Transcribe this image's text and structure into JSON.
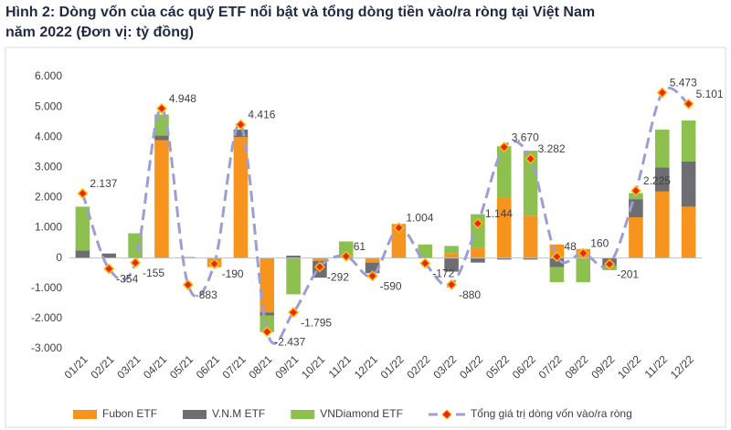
{
  "chart_data": {
    "type": "bar_line",
    "title": [
      "Hình 2: Dòng vốn của các quỹ ETF nổi bật và tổng dòng tiền vào/ra ròng tại Việt Nam",
      "năm 2022 (Đơn vị: tỷ đồng)"
    ],
    "categories": [
      "01/21",
      "02/21",
      "03/21",
      "04/21",
      "05/21",
      "06/21",
      "07/21",
      "08/21",
      "09/21",
      "10/21",
      "11/21",
      "12/21",
      "01/22",
      "02/22",
      "03/22",
      "04/22",
      "05/22",
      "06/22",
      "07/22",
      "08/22",
      "09/22",
      "10/22",
      "11/22",
      "12/22"
    ],
    "series": [
      {
        "name": "Fubon ETF",
        "type": "bar",
        "color": "#f7941d",
        "values": [
          0,
          0,
          0,
          3900,
          0,
          -300,
          4000,
          -1800,
          0,
          -100,
          0,
          -150,
          1130,
          0,
          150,
          350,
          2000,
          1400,
          450,
          300,
          0,
          1350,
          2200,
          1700
        ]
      },
      {
        "name": "V.N.M ETF",
        "type": "bar",
        "color": "#6d6e71",
        "values": [
          250,
          150,
          0,
          150,
          30,
          0,
          250,
          -100,
          80,
          -550,
          0,
          -350,
          0,
          0,
          -450,
          -150,
          -50,
          -50,
          -300,
          0,
          -250,
          600,
          800,
          1500
        ]
      },
      {
        "name": "VNDiamond ETF",
        "type": "bar",
        "color": "#8dc04f",
        "values": [
          1450,
          0,
          820,
          700,
          0,
          0,
          0,
          -550,
          -1200,
          0,
          550,
          0,
          0,
          450,
          250,
          1100,
          1700,
          2150,
          -500,
          -800,
          -150,
          200,
          1250,
          1350
        ]
      },
      {
        "name": "Tổng giá trị dòng vốn vào/ra ròng",
        "type": "line",
        "color": "#9e9ed6",
        "values": [
          2137,
          -354,
          -155,
          4948,
          -883,
          -190,
          4416,
          -2437,
          -1795,
          -292,
          61,
          -590,
          1004,
          -172,
          -880,
          1144,
          3670,
          3282,
          48,
          160,
          -201,
          2225,
          5473,
          5101
        ],
        "value_labels": [
          "2.137",
          "-354",
          "-155",
          "4.948",
          "-883",
          "-190",
          "4.416",
          "-2.437",
          "-1.795",
          "-292",
          "61",
          "-590",
          "1.004",
          "-172",
          "-880",
          "1.144",
          "3.670",
          "3.282",
          "48",
          "160",
          "-201",
          "2.225",
          "5.473",
          "5.101"
        ]
      }
    ],
    "ylim": [
      -3000,
      6000
    ],
    "yticks": [
      {
        "value": -3000,
        "label": "-3.000"
      },
      {
        "value": -2000,
        "label": "-2.000"
      },
      {
        "value": -1000,
        "label": "-1.000"
      },
      0,
      {
        "value": 1000,
        "label": "1.000"
      },
      {
        "value": 2000,
        "label": "2.000"
      },
      {
        "value": 3000,
        "label": "3.000"
      },
      {
        "value": 4000,
        "label": "4.000"
      },
      {
        "value": 5000,
        "label": "5.000"
      },
      {
        "value": 6000,
        "label": "6.000"
      }
    ],
    "grid": false,
    "legend": "bottom"
  }
}
